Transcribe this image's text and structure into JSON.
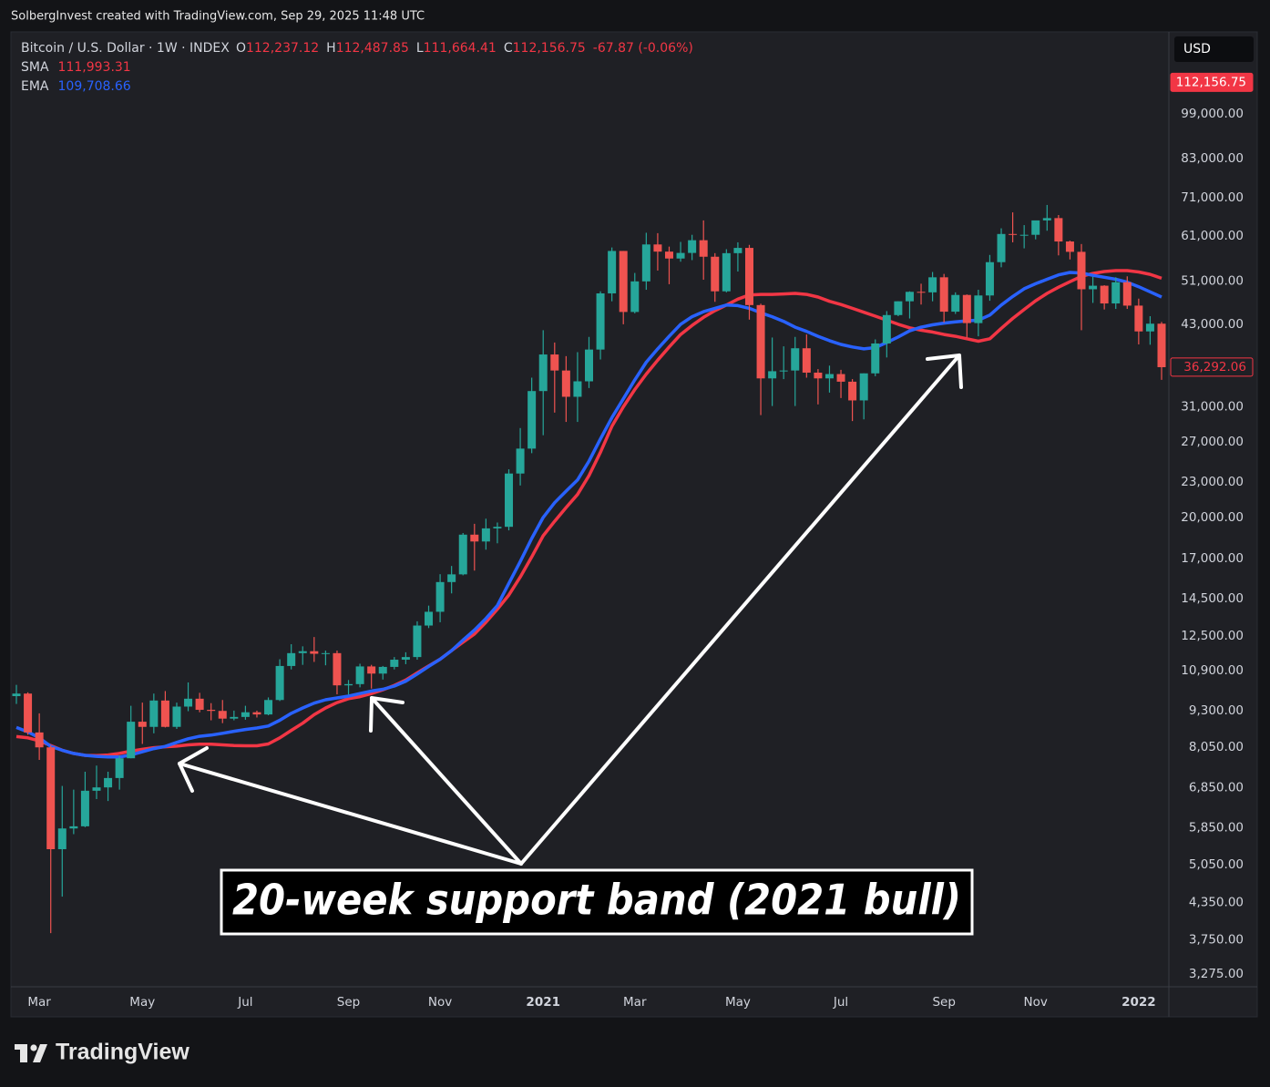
{
  "header": {
    "credit": "SolbergInvest created with TradingView.com, Sep 29, 2025 11:48 UTC"
  },
  "chart_data": {
    "type": "candlestick",
    "title": "Bitcoin / U.S. Dollar · 1W · INDEX",
    "quote": [
      {
        "key": "O",
        "text": "112,237.12"
      },
      {
        "key": "H",
        "text": "112,487.85"
      },
      {
        "key": "L",
        "text": "111,664.41"
      },
      {
        "key": "C",
        "text": "112,156.75"
      }
    ],
    "change": "-67.87 (-0.06%)",
    "currency": "USD",
    "annotation": "20-week support band (2021 bull)",
    "up_color": "#26a69a",
    "down_color": "#ef5350",
    "log_scale": true,
    "grid": false,
    "ylim": [
      3113,
      137000
    ],
    "yticks": [
      {
        "value": 99000,
        "label": "99,000.00"
      },
      {
        "value": 83000,
        "label": "83,000.00"
      },
      {
        "value": 71000,
        "label": "71,000.00"
      },
      {
        "value": 61000,
        "label": "61,000.00"
      },
      {
        "value": 51000,
        "label": "51,000.00"
      },
      {
        "value": 43000,
        "label": "43,000.00"
      },
      {
        "value": 31000,
        "label": "31,000.00"
      },
      {
        "value": 27000,
        "label": "27,000.00"
      },
      {
        "value": 23000,
        "label": "23,000.00"
      },
      {
        "value": 20000,
        "label": "20,000.00"
      },
      {
        "value": 17000,
        "label": "17,000.00"
      },
      {
        "value": 14500,
        "label": "14,500.00"
      },
      {
        "value": 12500,
        "label": "12,500.00"
      },
      {
        "value": 10900,
        "label": "10,900.00"
      },
      {
        "value": 9300,
        "label": "9,300.00"
      },
      {
        "value": 8050,
        "label": "8,050.00"
      },
      {
        "value": 6850,
        "label": "6,850.00"
      },
      {
        "value": 5850,
        "label": "5,850.00"
      },
      {
        "value": 5050,
        "label": "5,050.00"
      },
      {
        "value": 4350,
        "label": "4,350.00"
      },
      {
        "value": 3750,
        "label": "3,750.00"
      },
      {
        "value": 3275,
        "label": "3,275.00"
      }
    ],
    "price_labels": [
      {
        "value": 112156.75,
        "label": "112,156.75"
      },
      {
        "value": 36292.06,
        "label": "36,292.06"
      }
    ],
    "categories": [
      null,
      null,
      "Mar",
      null,
      null,
      null,
      null,
      null,
      null,
      null,
      null,
      "May",
      null,
      null,
      null,
      null,
      null,
      null,
      null,
      null,
      "Jul",
      null,
      null,
      null,
      null,
      null,
      null,
      null,
      null,
      "Sep",
      null,
      null,
      null,
      null,
      null,
      null,
      null,
      "Nov",
      null,
      null,
      null,
      null,
      null,
      null,
      null,
      null,
      "2021",
      null,
      null,
      null,
      null,
      null,
      null,
      null,
      "Mar",
      null,
      null,
      null,
      null,
      null,
      null,
      null,
      null,
      "May",
      null,
      null,
      null,
      null,
      null,
      null,
      null,
      null,
      "Jul",
      null,
      null,
      null,
      null,
      null,
      null,
      null,
      null,
      "Sep",
      null,
      null,
      null,
      null,
      null,
      null,
      null,
      "Nov",
      null,
      null,
      null,
      null,
      null,
      null,
      null,
      null,
      "2022",
      null,
      null
    ],
    "open": [
      9850,
      9950,
      8530,
      8040,
      5370,
      5830,
      5880,
      6770,
      6860,
      7120,
      7700,
      8900,
      8720,
      9680,
      8720,
      9450,
      9750,
      9330,
      9290,
      9010,
      9070,
      9240,
      9160,
      9700,
      11100,
      11680,
      11770,
      11650,
      11680,
      10280,
      10330,
      11080,
      10770,
      11060,
      11380,
      11500,
      13030,
      13760,
      15480,
      15960,
      18680,
      18180,
      19150,
      19270,
      23800,
      26270,
      33000,
      38150,
      35800,
      32260,
      34300,
      38900,
      48600,
      57500,
      45150,
      50970,
      59000,
      57350,
      55800,
      57050,
      60000,
      56200,
      49000,
      57000,
      58200,
      46400,
      34700,
      35700,
      35800,
      39100,
      35500,
      34700,
      35300,
      34250,
      31800,
      35400,
      39850,
      44600,
      47100,
      48900,
      48800,
      51800,
      45200,
      48300,
      43200,
      48200,
      55000,
      61500,
      61300,
      61300,
      64900,
      65500,
      59700,
      57300,
      49400,
      50100,
      46700,
      50800,
      46300,
      41800,
      43100
    ],
    "high": [
      10300,
      10000,
      9200,
      8100,
      6900,
      6800,
      7300,
      7480,
      7300,
      7780,
      9480,
      9600,
      9950,
      10050,
      9600,
      10400,
      9980,
      9580,
      9700,
      9300,
      9480,
      9300,
      9800,
      11400,
      12100,
      12000,
      12450,
      11800,
      11800,
      10500,
      11200,
      11150,
      11100,
      11500,
      11720,
      13250,
      14100,
      15970,
      16500,
      18800,
      19500,
      19900,
      19600,
      24200,
      28500,
      34800,
      42000,
      40000,
      37900,
      38500,
      40900,
      49000,
      58300,
      57500,
      52700,
      61800,
      61700,
      58500,
      59600,
      61300,
      64900,
      57000,
      57900,
      59500,
      58900,
      46650,
      40800,
      39400,
      40900,
      41300,
      36000,
      36500,
      35900,
      34600,
      35400,
      40500,
      45300,
      47100,
      49000,
      50500,
      52900,
      52500,
      48800,
      48400,
      49300,
      56600,
      62900,
      67000,
      63700,
      64300,
      69000,
      66300,
      59900,
      59100,
      51900,
      50200,
      51800,
      52000,
      47600,
      44400,
      43400
    ],
    "low": [
      9550,
      8450,
      7650,
      3850,
      4450,
      5700,
      5860,
      6550,
      6500,
      6800,
      7700,
      8150,
      8500,
      8700,
      8650,
      9280,
      9240,
      8950,
      8850,
      8950,
      8970,
      9050,
      9130,
      9660,
      10950,
      11150,
      11280,
      11130,
      9920,
      9910,
      10200,
      10150,
      10520,
      10950,
      11180,
      11380,
      12900,
      13200,
      14800,
      15900,
      16200,
      17600,
      18050,
      19000,
      22700,
      25800,
      27700,
      30300,
      29200,
      29200,
      33400,
      37400,
      47100,
      43000,
      44900,
      49300,
      53200,
      50400,
      55100,
      55450,
      51300,
      47000,
      48800,
      53000,
      43800,
      30000,
      31100,
      34600,
      31100,
      34800,
      31300,
      32800,
      32100,
      29300,
      29500,
      35000,
      37700,
      44400,
      44000,
      46500,
      47100,
      43300,
      44800,
      40800,
      41000,
      47200,
      53900,
      59500,
      58100,
      60200,
      62300,
      56500,
      55600,
      42000,
      46800,
      45600,
      45700,
      45700,
      39700,
      39650,
      34500
    ],
    "close": [
      9950,
      8530,
      8040,
      5370,
      5830,
      5880,
      6770,
      6860,
      7120,
      7700,
      8900,
      8720,
      9680,
      8720,
      9450,
      9750,
      9330,
      9290,
      9010,
      9070,
      9240,
      9160,
      9700,
      11100,
      11680,
      11770,
      11650,
      11680,
      10280,
      10330,
      11080,
      10770,
      11060,
      11380,
      11500,
      13030,
      13760,
      15480,
      15960,
      18680,
      18180,
      19150,
      19270,
      23800,
      26270,
      33000,
      38150,
      35800,
      32260,
      34300,
      38900,
      48600,
      57500,
      45150,
      50970,
      59000,
      57350,
      55800,
      57050,
      60000,
      56200,
      49000,
      57000,
      58200,
      46400,
      34700,
      35700,
      35800,
      39100,
      35500,
      34700,
      35300,
      34250,
      31800,
      35400,
      39850,
      44600,
      47100,
      48900,
      48800,
      51800,
      45200,
      48300,
      43200,
      48200,
      55000,
      61500,
      61300,
      61300,
      64900,
      65500,
      59700,
      57300,
      49400,
      50100,
      46700,
      50800,
      46300,
      41800,
      43100,
      36276
    ],
    "series": [
      {
        "name": "SMA",
        "color": "#f23645",
        "last_label": "111,993.31",
        "values": [
          8390,
          8350,
          8250,
          8100,
          7950,
          7850,
          7790,
          7780,
          7800,
          7850,
          7920,
          7980,
          8030,
          8060,
          8080,
          8120,
          8140,
          8140,
          8120,
          8100,
          8090,
          8090,
          8150,
          8350,
          8600,
          8850,
          9150,
          9400,
          9600,
          9750,
          9830,
          9950,
          10100,
          10280,
          10500,
          10800,
          11100,
          11400,
          11800,
          12200,
          12600,
          13200,
          13900,
          14700,
          15800,
          17100,
          18600,
          19700,
          20800,
          21900,
          23600,
          25900,
          28700,
          31000,
          33200,
          35300,
          37300,
          39300,
          41300,
          42800,
          44200,
          45400,
          46400,
          47500,
          48300,
          48400,
          48400,
          48500,
          48600,
          48400,
          47900,
          47100,
          46500,
          45800,
          45100,
          44400,
          43700,
          43000,
          42400,
          42000,
          41700,
          41300,
          41000,
          40600,
          40200,
          40600,
          42300,
          44000,
          45600,
          47200,
          48600,
          49800,
          50900,
          52000,
          52600,
          53000,
          53200,
          53200,
          52900,
          52400,
          51600
        ]
      },
      {
        "name": "EMA",
        "color": "#2962ff",
        "last_label": "109,708.66",
        "values": [
          8700,
          8550,
          8350,
          8070,
          7950,
          7850,
          7790,
          7760,
          7740,
          7740,
          7800,
          7900,
          8000,
          8070,
          8200,
          8320,
          8400,
          8440,
          8500,
          8570,
          8630,
          8680,
          8750,
          8950,
          9200,
          9400,
          9580,
          9710,
          9780,
          9850,
          9950,
          10050,
          10120,
          10250,
          10450,
          10750,
          11080,
          11400,
          11800,
          12300,
          12800,
          13400,
          14100,
          15400,
          16800,
          18400,
          20000,
          21200,
          22200,
          23200,
          25000,
          27300,
          29700,
          32000,
          34500,
          37000,
          39000,
          41000,
          43000,
          44300,
          45200,
          45800,
          46400,
          46300,
          45800,
          45000,
          44300,
          43500,
          42500,
          41800,
          41000,
          40300,
          39700,
          39300,
          39000,
          39200,
          40000,
          40900,
          41900,
          42500,
          42900,
          43200,
          43400,
          43600,
          43700,
          44600,
          46400,
          48000,
          49500,
          50500,
          51400,
          52300,
          52800,
          52700,
          52200,
          51800,
          51400,
          50800,
          49900,
          48900,
          47900
        ]
      }
    ]
  },
  "footer": {
    "brand": "TradingView"
  }
}
